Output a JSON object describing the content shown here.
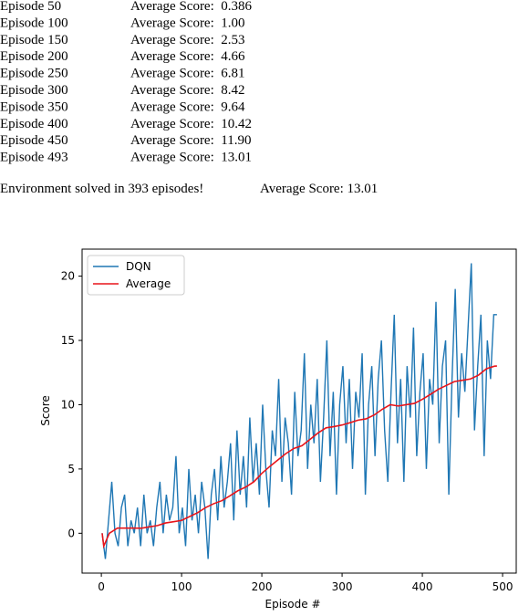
{
  "log": {
    "rows": [
      [
        "Episode 50",
        "Average Score:  0.386"
      ],
      [
        "Episode 100",
        "Average Score:  1.00"
      ],
      [
        "Episode 150",
        "Average Score:  2.53"
      ],
      [
        "Episode 200",
        "Average Score:  4.66"
      ],
      [
        "Episode 250",
        "Average Score:  6.81"
      ],
      [
        "Episode 300",
        "Average Score:  8.42"
      ],
      [
        "Episode 350",
        "Average Score:  9.64"
      ],
      [
        "Episode 400",
        "Average Score:  10.42"
      ],
      [
        "Episode 450",
        "Average Score:  11.90"
      ],
      [
        "Episode 493",
        "Average Score:  13.01"
      ]
    ],
    "solved": "Environment solved in 393 episodes!",
    "solved_score": "Average Score: 13.01"
  },
  "chart_data": {
    "type": "line",
    "xlabel": "Episode #",
    "ylabel": "Score",
    "xlim": [
      -24,
      517
    ],
    "ylim": [
      -3.1,
      22.1
    ],
    "xticks": [
      0,
      100,
      200,
      300,
      400,
      500
    ],
    "yticks": [
      0,
      5,
      10,
      15,
      20
    ],
    "legend": "upper left",
    "series": [
      {
        "name": "DQN",
        "color": "#1f77b4",
        "x": [
          1,
          5,
          9,
          13,
          17,
          21,
          25,
          29,
          33,
          37,
          41,
          45,
          49,
          53,
          57,
          61,
          65,
          69,
          73,
          77,
          81,
          85,
          89,
          93,
          97,
          101,
          105,
          109,
          113,
          117,
          121,
          125,
          129,
          133,
          137,
          141,
          145,
          149,
          153,
          157,
          161,
          165,
          169,
          173,
          177,
          181,
          185,
          189,
          193,
          197,
          201,
          205,
          209,
          213,
          217,
          221,
          225,
          229,
          233,
          237,
          241,
          245,
          249,
          253,
          257,
          261,
          265,
          269,
          273,
          277,
          281,
          285,
          289,
          293,
          297,
          301,
          305,
          309,
          313,
          317,
          321,
          325,
          329,
          333,
          337,
          341,
          345,
          349,
          353,
          357,
          361,
          365,
          369,
          373,
          377,
          381,
          385,
          389,
          393,
          397,
          401,
          405,
          409,
          413,
          417,
          421,
          425,
          429,
          433,
          437,
          441,
          445,
          449,
          453,
          457,
          461,
          465,
          469,
          473,
          477,
          481,
          485,
          489,
          493
        ],
        "values": [
          0,
          -2,
          1,
          4,
          0,
          -1,
          2,
          3,
          -1,
          1,
          0,
          2,
          -1,
          3,
          0,
          1,
          -1,
          2,
          4,
          0,
          3,
          1,
          2,
          6,
          0,
          2,
          -1,
          5,
          1,
          3,
          0,
          4,
          2,
          -2,
          3,
          5,
          1,
          6,
          2,
          4,
          7,
          1,
          8,
          3,
          6,
          2,
          9,
          4,
          7,
          3,
          10,
          5,
          2,
          8,
          6,
          12,
          4,
          9,
          7,
          3,
          11,
          6,
          8,
          14,
          5,
          10,
          7,
          12,
          4,
          9,
          15,
          6,
          11,
          3,
          10,
          13,
          7,
          12,
          5,
          11,
          9,
          14,
          3,
          10,
          13,
          6,
          12,
          15,
          8,
          4,
          11,
          17,
          7,
          12,
          4,
          13,
          9,
          16,
          6,
          11,
          14,
          5,
          12,
          10,
          18,
          7,
          13,
          15,
          3,
          12,
          19,
          9,
          14,
          11,
          16,
          21,
          8,
          13,
          17,
          6,
          15,
          12,
          17,
          17
        ]
      },
      {
        "name": "Average",
        "color": "#e8141a",
        "x": [
          1,
          3,
          10,
          20,
          30,
          40,
          50,
          60,
          70,
          80,
          90,
          100,
          110,
          120,
          130,
          140,
          150,
          160,
          170,
          180,
          190,
          200,
          210,
          220,
          230,
          240,
          250,
          260,
          270,
          280,
          290,
          300,
          310,
          320,
          330,
          340,
          350,
          360,
          370,
          380,
          390,
          400,
          410,
          420,
          430,
          440,
          450,
          460,
          470,
          480,
          490,
          493
        ],
        "values": [
          0,
          -1,
          0,
          0.4,
          0.4,
          0.4,
          0.39,
          0.5,
          0.6,
          0.8,
          0.9,
          1.0,
          1.3,
          1.6,
          2.0,
          2.3,
          2.53,
          2.9,
          3.3,
          3.6,
          4.0,
          4.66,
          5.2,
          5.7,
          6.2,
          6.6,
          6.81,
          7.3,
          7.8,
          8.2,
          8.3,
          8.42,
          8.6,
          8.8,
          8.9,
          9.2,
          9.64,
          10.0,
          9.9,
          10.0,
          10.1,
          10.42,
          10.8,
          11.2,
          11.5,
          11.8,
          11.9,
          12.0,
          12.3,
          12.8,
          13.0,
          13.01
        ]
      }
    ]
  }
}
